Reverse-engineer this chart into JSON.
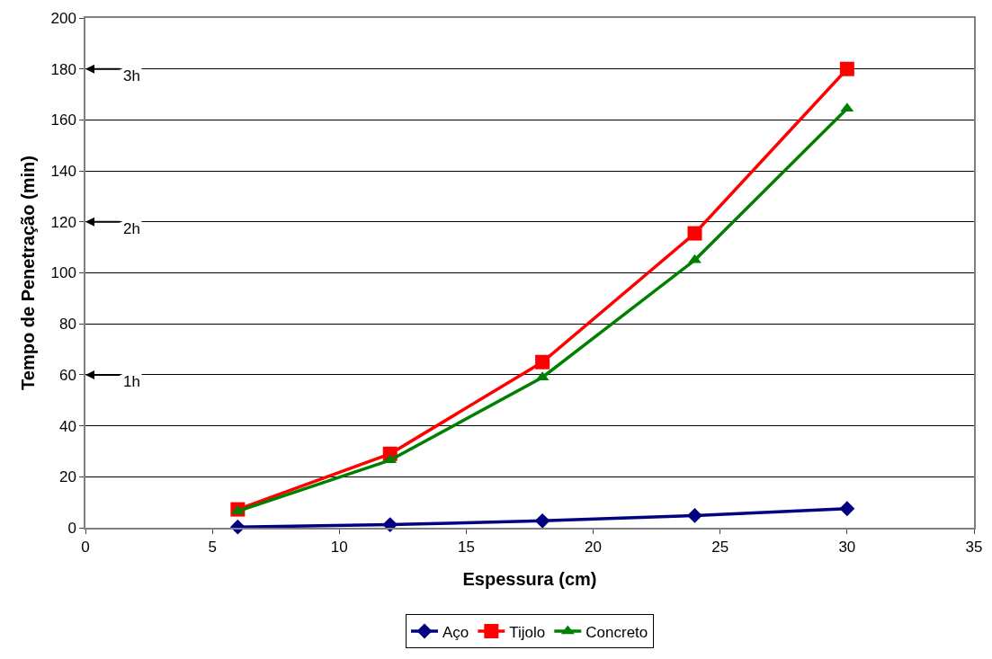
{
  "chart_data": {
    "type": "line",
    "xlabel": "Espessura (cm)",
    "ylabel": "Tempo de Penetração (min)",
    "x": [
      6,
      12,
      18,
      24,
      30
    ],
    "series": [
      {
        "name": "Aço",
        "color": "#000080",
        "values": [
          0.3,
          1.2,
          2.7,
          4.8,
          7.5
        ],
        "marker": "diamond"
      },
      {
        "name": "Tijolo",
        "color": "#ff0000",
        "values": [
          7.2,
          29,
          65,
          115.5,
          180
        ],
        "marker": "square"
      },
      {
        "name": "Concreto",
        "color": "#008000",
        "values": [
          6.5,
          26.5,
          59,
          105,
          164.5
        ],
        "marker": "triangle"
      }
    ],
    "ref_lines": [
      {
        "axis": "y",
        "value": 180,
        "label": "3h"
      },
      {
        "axis": "y",
        "value": 120,
        "label": "2h"
      },
      {
        "axis": "y",
        "value": 60,
        "label": "1h"
      }
    ],
    "xlim": [
      0,
      35
    ],
    "xticks": [
      0,
      5,
      10,
      15,
      20,
      25,
      30,
      35
    ],
    "ylim": [
      0,
      200
    ],
    "yticks": [
      0,
      20,
      40,
      60,
      80,
      100,
      120,
      140,
      160,
      180,
      200
    ],
    "grid": "y",
    "legend": "bottom",
    "line_style": "solid"
  }
}
